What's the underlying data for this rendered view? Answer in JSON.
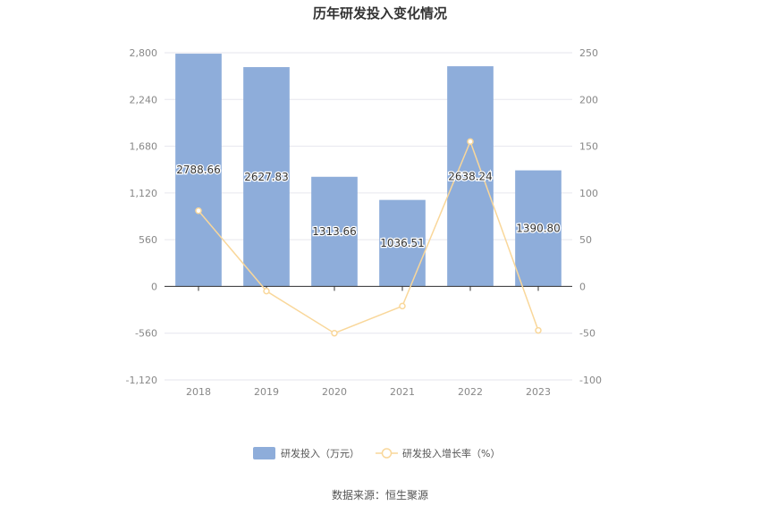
{
  "chart_data": {
    "title": "历年研发投入变化情况",
    "type": "bar",
    "categories": [
      "2018",
      "2019",
      "2020",
      "2021",
      "2022",
      "2023"
    ],
    "series": [
      {
        "name": "研发投入（万元）",
        "type": "bar",
        "axis": "left",
        "values": [
          2788.66,
          2627.83,
          1313.66,
          1036.51,
          2638.24,
          1390.8
        ],
        "labels": [
          "2788.66",
          "2627.83",
          "1313.66",
          "1036.51",
          "2638.24",
          "1390.80"
        ],
        "color": "#8eadda"
      },
      {
        "name": "研发投入增长率（%）",
        "type": "line",
        "axis": "right",
        "values": [
          81,
          -5,
          -50,
          -21,
          155,
          -47
        ],
        "color": "#f9d79a"
      }
    ],
    "left_axis": {
      "ylim": [
        -1120,
        2800
      ],
      "ticks": [
        "2,800",
        "2,240",
        "1,680",
        "1,120",
        "560",
        "0",
        "-560",
        "-1,120"
      ]
    },
    "right_axis": {
      "ylim": [
        -100,
        250
      ],
      "ticks": [
        "250",
        "200",
        "150",
        "100",
        "50",
        "0",
        "-50",
        "-100"
      ]
    },
    "grid": true,
    "legend_position": "bottom"
  },
  "source": "数据来源：恒生聚源"
}
